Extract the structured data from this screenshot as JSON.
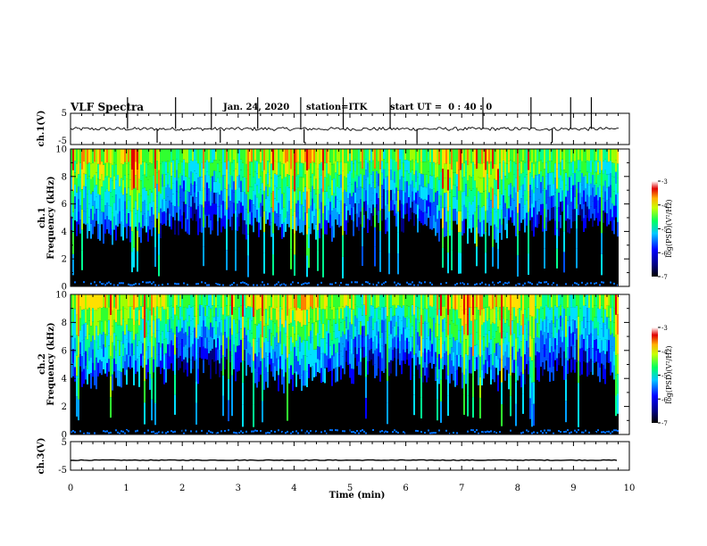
{
  "header": {
    "title": "VLF Spectra",
    "date": "Jan. 24, 2020",
    "station": "station=ITK",
    "start": "start UT =  0 : 40 : 0"
  },
  "chart_data": [
    {
      "type": "line",
      "id": "ch1-waveform",
      "ylabel": "ch.1(V)",
      "ylim": [
        -5,
        5
      ],
      "yticks": [
        5,
        -5
      ],
      "xlim": [
        0,
        10
      ],
      "baseline": 0,
      "spikes_x": [
        1.02,
        1.55,
        1.88,
        2.52,
        2.68,
        3.35,
        4.12,
        4.18,
        4.88,
        5.72,
        6.2,
        7.38,
        8.24,
        8.62,
        8.95,
        9.32
      ]
    },
    {
      "type": "heatmap",
      "id": "ch1-spectrogram",
      "ylabel": "ch.1 Frequency (kHz)",
      "ylim": [
        0,
        10
      ],
      "yticks": [
        0,
        2,
        4,
        6,
        8,
        10
      ],
      "xlim": [
        0,
        10
      ],
      "colorbar": {
        "label": "log(PSD)(V²/Hz)",
        "range": [
          -7,
          -3
        ],
        "ticks": [
          -3,
          -4,
          -5,
          -6,
          -7
        ]
      }
    },
    {
      "type": "heatmap",
      "id": "ch2-spectrogram",
      "ylabel": "ch.2 Frequency (kHz)",
      "ylim": [
        0,
        10
      ],
      "yticks": [
        0,
        2,
        4,
        6,
        8,
        10
      ],
      "xlim": [
        0,
        10
      ],
      "colorbar": {
        "label": "log(PSD)(V²/Hz)",
        "range": [
          -7,
          -3
        ],
        "ticks": [
          -3,
          -4,
          -5,
          -6,
          -7
        ]
      }
    },
    {
      "type": "line",
      "id": "ch3-waveform",
      "ylabel": "ch.3(V)",
      "ylim": [
        -5,
        5
      ],
      "yticks": [
        5,
        -5
      ],
      "xlim": [
        0,
        10
      ],
      "baseline": -1.5
    }
  ],
  "xaxis": {
    "label": "Time (min)",
    "range": [
      0,
      10
    ],
    "ticks": [
      "0",
      "1",
      "2",
      "3",
      "4",
      "5",
      "6",
      "7",
      "8",
      "9",
      "10"
    ]
  }
}
